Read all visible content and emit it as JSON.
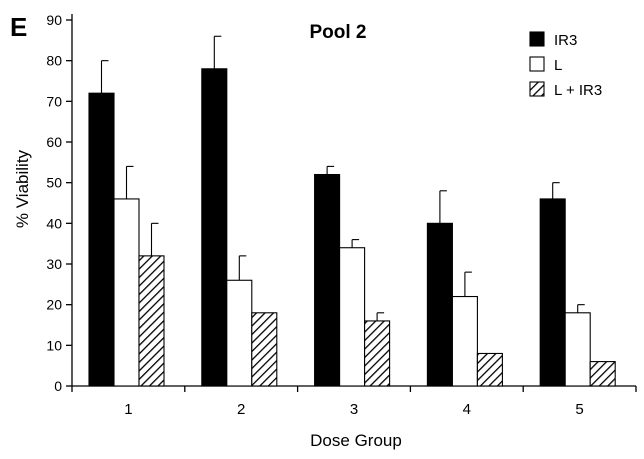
{
  "panel_label": "E",
  "chart_data": {
    "type": "bar",
    "title": "Pool 2",
    "xlabel": "Dose Group",
    "ylabel": "% Viability",
    "categories": [
      "1",
      "2",
      "3",
      "4",
      "5"
    ],
    "ylim": [
      0,
      90
    ],
    "yticks": [
      0,
      10,
      20,
      30,
      40,
      50,
      60,
      70,
      80,
      90
    ],
    "grid": false,
    "legend_position": "top-right",
    "series": [
      {
        "name": "IR3",
        "fill": "solid-black",
        "values": [
          72,
          78,
          52,
          40,
          46
        ],
        "errors": [
          8,
          8,
          2,
          8,
          4
        ]
      },
      {
        "name": "L",
        "fill": "white",
        "values": [
          46,
          26,
          34,
          22,
          18
        ],
        "errors": [
          8,
          6,
          2,
          6,
          2
        ]
      },
      {
        "name": "L + IR3",
        "fill": "diagonal-hatch",
        "values": [
          32,
          18,
          16,
          8,
          6
        ],
        "errors": [
          8,
          0,
          2,
          0,
          0
        ]
      }
    ]
  }
}
